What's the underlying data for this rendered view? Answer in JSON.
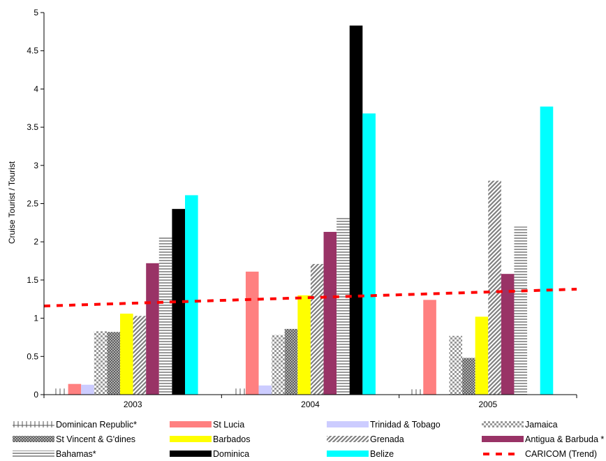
{
  "chart_data": {
    "type": "bar",
    "ylabel": "Cruise Tourist / Tourist",
    "xlabel": "",
    "ylim": [
      0,
      5
    ],
    "yticks": [
      0,
      0.5,
      1,
      1.5,
      2,
      2.5,
      3,
      3.5,
      4,
      4.5,
      5
    ],
    "ytick_labels": [
      "0",
      "0.5",
      "1",
      "1.5",
      "2",
      "2.5",
      "3",
      "3.5",
      "4",
      "4.5",
      "5"
    ],
    "categories": [
      "2003",
      "2004",
      "2005"
    ],
    "series": [
      {
        "name": "Dominican Republic*",
        "color": "#555555",
        "pattern": "cross-bar",
        "values": [
          0.08,
          0.08,
          0.07
        ]
      },
      {
        "name": "St Lucia",
        "color": "#FF8080",
        "pattern": "solid",
        "values": [
          0.14,
          1.61,
          1.24
        ]
      },
      {
        "name": "Trinidad & Tobago",
        "color": "#CCCCFF",
        "pattern": "solid",
        "values": [
          0.13,
          0.12,
          0
        ]
      },
      {
        "name": "Jamaica",
        "color": "#999999",
        "pattern": "checker",
        "values": [
          0.83,
          0.78,
          0.77
        ]
      },
      {
        "name": "St Vincent & G'dines",
        "color": "#777777",
        "pattern": "crosshatch",
        "values": [
          0.82,
          0.86,
          0.48
        ]
      },
      {
        "name": "Barbados",
        "color": "#FFFF00",
        "pattern": "solid",
        "values": [
          1.06,
          1.3,
          1.02
        ]
      },
      {
        "name": "Grenada",
        "color": "#808080",
        "pattern": "diagonal",
        "values": [
          1.03,
          1.71,
          2.8
        ]
      },
      {
        "name": "Antigua & Barbuda *",
        "color": "#993366",
        "pattern": "solid",
        "values": [
          1.72,
          2.13,
          1.58
        ]
      },
      {
        "name": "Bahamas*",
        "color": "#999999",
        "pattern": "horizontal",
        "values": [
          2.06,
          2.32,
          2.2
        ]
      },
      {
        "name": "Dominica",
        "color": "#000000",
        "pattern": "solid",
        "values": [
          2.43,
          4.83,
          0
        ]
      },
      {
        "name": "Belize",
        "color": "#00FFFF",
        "pattern": "solid",
        "values": [
          2.61,
          3.68,
          3.77
        ]
      }
    ],
    "trend": {
      "name": "CARICOM (Trend)",
      "color": "#FF0000",
      "style": "dashed",
      "start": 1.16,
      "end": 1.38
    },
    "legend_position": "bottom",
    "grid": false
  }
}
